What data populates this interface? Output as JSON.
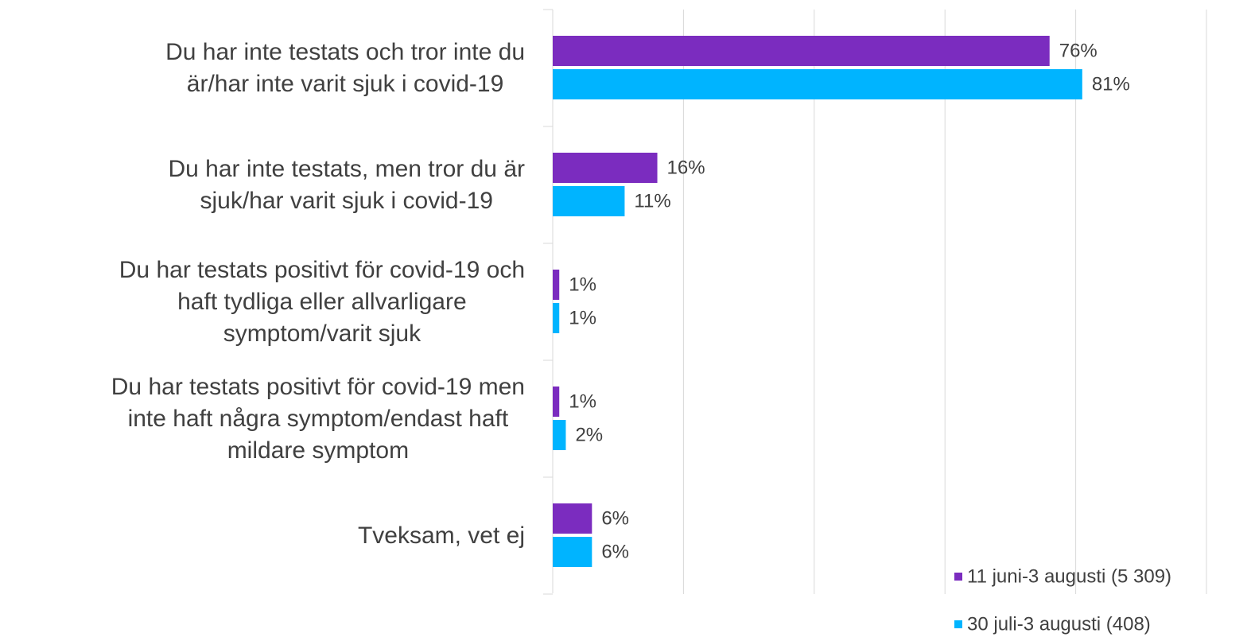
{
  "chart_data": {
    "type": "bar",
    "orientation": "horizontal",
    "categories": [
      "Du har inte testats och tror inte du\när/har inte varit sjuk i covid-19",
      "Du har inte testats, men tror du är\nsjuk/har varit sjuk i covid-19",
      "Du har testats positivt för covid-19 och\nhaft tydliga eller allvarligare\nsymptom/varit sjuk",
      "Du har testats positivt för covid-19 men\ninte haft några symptom/endast haft\nmildare symptom",
      "Tveksam, vet ej"
    ],
    "series": [
      {
        "name": "11 juni-3 augusti (5 309)",
        "color": "#7b2cbf",
        "values": [
          76,
          16,
          1,
          1,
          6
        ],
        "value_labels": [
          "76%",
          "16%",
          "1%",
          "1%",
          "6%"
        ]
      },
      {
        "name": "30 juli-3 augusti (408)",
        "color": "#00b4ff",
        "values": [
          81,
          11,
          1,
          2,
          6
        ],
        "value_labels": [
          "81%",
          "11%",
          "1%",
          "2%",
          "6%"
        ]
      }
    ],
    "xlim": [
      0,
      100
    ],
    "xticks": [
      0,
      20,
      40,
      60,
      80,
      100
    ],
    "grid": true,
    "legend": "lower right"
  }
}
